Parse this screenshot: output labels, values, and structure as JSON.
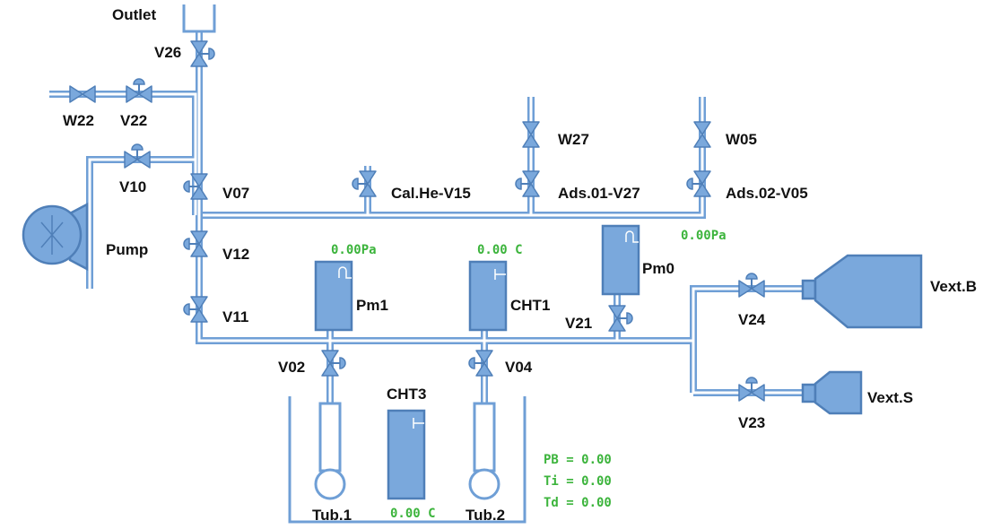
{
  "colors": {
    "equipment_fill": "#7aa8dc",
    "equipment_stroke": "#4f7fb8",
    "pipe": "#6f9fd6",
    "reading_text": "#3cb43c"
  },
  "labels": {
    "outlet": "Outlet",
    "pump": "Pump",
    "V26": "V26",
    "W22": "W22",
    "V22": "V22",
    "V10": "V10",
    "V07": "V07",
    "V12": "V12",
    "V11": "V11",
    "V15": "Cal.He-V15",
    "W27": "W27",
    "V27": "Ads.01-V27",
    "W05": "W05",
    "V05": "Ads.02-V05",
    "Pm1": "Pm1",
    "CHT1": "CHT1",
    "Pm0": "Pm0",
    "V21": "V21",
    "V02": "V02",
    "V04": "V04",
    "CHT3": "CHT3",
    "Tub1": "Tub.1",
    "Tub2": "Tub.2",
    "V24": "V24",
    "V23": "V23",
    "VextB": "Vext.B",
    "VextS": "Vext.S"
  },
  "readings": {
    "Pm1": "0.00Pa",
    "CHT1": "0.00  C",
    "Pm0": "0.00Pa",
    "CHT3": "0.00  C",
    "PB": "PB = 0.00",
    "Ti": "Ti  = 0.00",
    "Td": "Td  = 0.00"
  }
}
